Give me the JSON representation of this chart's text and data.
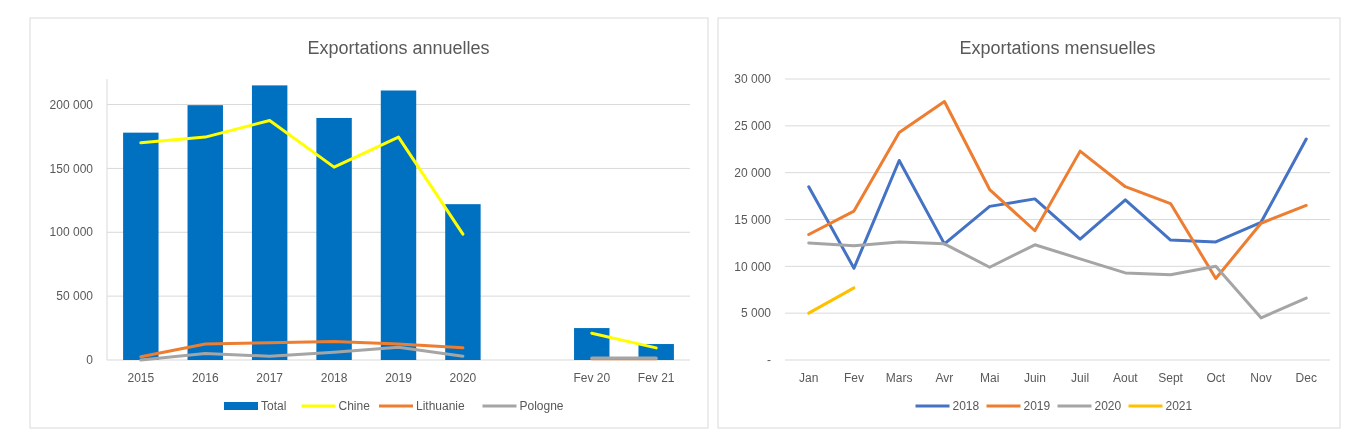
{
  "chart_data": [
    {
      "type": "bar",
      "title": "Exportations annuelles",
      "categories": [
        "2015",
        "2016",
        "2017",
        "2018",
        "2019",
        "2020",
        null,
        "Fev 20",
        "Fev 21"
      ],
      "ylim": [
        0,
        220000
      ],
      "yticks": [
        {
          "value": 0,
          "label": "0"
        },
        {
          "value": 50000,
          "label": "50 000"
        },
        {
          "value": 100000,
          "label": "100 000"
        },
        {
          "value": 150000,
          "label": "150 000"
        },
        {
          "value": 200000,
          "label": "200 000"
        }
      ],
      "grid": "y",
      "legend": "bottom",
      "series": [
        {
          "name": "Total",
          "color": "#0070c0",
          "values": [
            178000,
            199500,
            215000,
            189500,
            211000,
            122000,
            null,
            25000,
            12500
          ]
        },
        {
          "name": "Chine",
          "type": "line",
          "color": "#ffff00",
          "values": [
            170000,
            174500,
            187500,
            151000,
            174500,
            98500,
            null,
            21000,
            9500
          ]
        },
        {
          "name": "Lithuanie",
          "type": "line",
          "color": "#ed7d31",
          "values": [
            2500,
            12500,
            13500,
            14500,
            12500,
            9500,
            null,
            1000,
            1000
          ]
        },
        {
          "name": "Pologne",
          "type": "line",
          "color": "#a5a5a5",
          "values": [
            0,
            5000,
            3000,
            6000,
            10000,
            3000,
            null,
            1500,
            1500
          ]
        }
      ]
    },
    {
      "type": "line",
      "title": "Exportations mensuelles",
      "categories": [
        "Jan",
        "Fev",
        "Mars",
        "Avr",
        "Mai",
        "Juin",
        "Juil",
        "Aout",
        "Sept",
        "Oct",
        "Nov",
        "Dec"
      ],
      "ylim": [
        0,
        30000
      ],
      "yticks": [
        {
          "value": 0,
          "label": "-"
        },
        {
          "value": 5000,
          "label": "5 000"
        },
        {
          "value": 10000,
          "label": "10 000"
        },
        {
          "value": 15000,
          "label": "15 000"
        },
        {
          "value": 20000,
          "label": "20 000"
        },
        {
          "value": 25000,
          "label": "25 000"
        },
        {
          "value": 30000,
          "label": "30 000"
        }
      ],
      "grid": "y",
      "legend": "bottom",
      "series": [
        {
          "name": "2018",
          "color": "#4472c4",
          "values": [
            18500,
            9800,
            21300,
            12400,
            16400,
            17200,
            12900,
            17100,
            12800,
            12600,
            14700,
            23600
          ]
        },
        {
          "name": "2019",
          "color": "#ed7d31",
          "values": [
            13400,
            15900,
            24300,
            27600,
            18200,
            13800,
            22300,
            18500,
            16700,
            8700,
            14600,
            16500
          ]
        },
        {
          "name": "2020",
          "color": "#a5a5a5",
          "values": [
            12500,
            12200,
            12600,
            12400,
            9900,
            12300,
            10800,
            9300,
            9100,
            10000,
            4500,
            6600
          ]
        },
        {
          "name": "2021",
          "color": "#ffc000",
          "values": [
            5000,
            7700,
            null,
            null,
            null,
            null,
            null,
            null,
            null,
            null,
            null,
            null
          ]
        }
      ]
    }
  ]
}
